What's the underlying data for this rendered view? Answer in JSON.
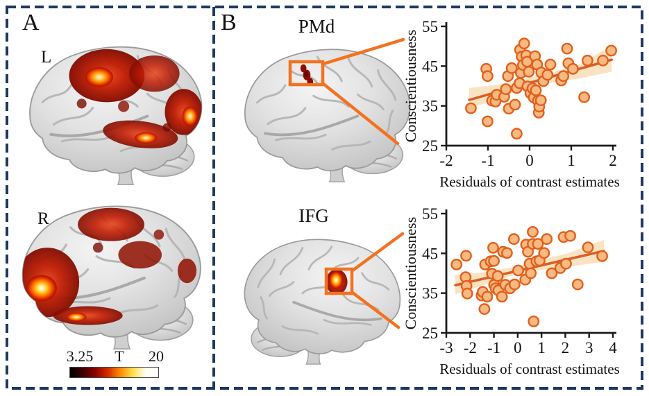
{
  "colors": {
    "border_navy": "#1e3864",
    "callout_orange": "#f4711f",
    "point_fill": "#f8ba83",
    "point_stroke": "#e2601c",
    "trend_line": "#d95f26",
    "band_fill": "#fae3c2",
    "axis": "#1a1a1a",
    "activation_red": "#c41e04",
    "activation_dark_red": "#7c0b00",
    "activation_hot_core": "#ffee55",
    "brain_gray": "#d9d9d9"
  },
  "panel_a": {
    "label": "A",
    "top_brain": {
      "hemisphere_label": "L"
    },
    "bottom_brain": {
      "hemisphere_label": "R"
    },
    "colorbar": {
      "min_label": "3.25",
      "stat_label": "T",
      "max_label": "20",
      "gradient": [
        "#000000",
        "#3f0000",
        "#8e0000",
        "#d52b00",
        "#ff8c00",
        "#ffe14d",
        "#fffdf0",
        "#ffffff"
      ]
    }
  },
  "panel_b": {
    "label": "B",
    "top_region_label": "PMd",
    "bottom_region_label": "IFG"
  },
  "chart_data": [
    {
      "type": "scatter",
      "region": "PMd",
      "xlabel": "Residuals of contrast estimates",
      "ylabel": "Conscientiousness",
      "xlim": [
        -2,
        2
      ],
      "ylim": [
        25,
        55
      ],
      "xticks": [
        -2,
        -1,
        0,
        1,
        2
      ],
      "yticks": [
        25,
        35,
        45,
        55
      ],
      "grid": false,
      "points": [
        [
          -1.41,
          34.4
        ],
        [
          -1.04,
          44.3
        ],
        [
          -1.01,
          42.5
        ],
        [
          -1.01,
          31.1
        ],
        [
          -0.9,
          36.3
        ],
        [
          -0.82,
          36.1
        ],
        [
          -0.79,
          37.8
        ],
        [
          -0.61,
          37.3
        ],
        [
          -0.57,
          39.2
        ],
        [
          -0.52,
          42.5
        ],
        [
          -0.5,
          34.3
        ],
        [
          -0.43,
          44.5
        ],
        [
          -0.35,
          35.3
        ],
        [
          -0.31,
          39.5
        ],
        [
          -0.31,
          28.0
        ],
        [
          -0.24,
          40.7
        ],
        [
          -0.23,
          49.1
        ],
        [
          -0.21,
          43.3
        ],
        [
          -0.19,
          47.4
        ],
        [
          -0.16,
          45.3
        ],
        [
          -0.13,
          50.7
        ],
        [
          -0.08,
          47.7
        ],
        [
          -0.06,
          46.1
        ],
        [
          -0.05,
          39.9
        ],
        [
          -0.02,
          43.6
        ],
        [
          0.02,
          38.2
        ],
        [
          0.07,
          39.4
        ],
        [
          0.1,
          37.1
        ],
        [
          0.13,
          47.5
        ],
        [
          0.15,
          38.9
        ],
        [
          0.18,
          45.4
        ],
        [
          0.2,
          36.3
        ],
        [
          0.22,
          33.3
        ],
        [
          0.23,
          34.8
        ],
        [
          0.27,
          36.4
        ],
        [
          0.28,
          43.4
        ],
        [
          0.33,
          41.2
        ],
        [
          0.43,
          42.8
        ],
        [
          0.5,
          45.4
        ],
        [
          0.76,
          41.4
        ],
        [
          0.81,
          42.5
        ],
        [
          0.9,
          49.4
        ],
        [
          0.93,
          45.7
        ],
        [
          1.04,
          44.3
        ],
        [
          1.31,
          37.2
        ],
        [
          1.39,
          46.4
        ],
        [
          1.76,
          46.4
        ],
        [
          1.96,
          48.9
        ]
      ],
      "trend": {
        "x": [
          -1.45,
          1.97
        ],
        "y": [
          36.5,
          46.6
        ]
      },
      "band": {
        "x": [
          -1.45,
          -0.8,
          -0.2,
          0.4,
          1.2,
          1.97
        ],
        "upper": [
          39.5,
          40.3,
          41.6,
          43.0,
          45.4,
          50.2
        ],
        "lower": [
          34.3,
          36.7,
          39.2,
          40.6,
          41.9,
          43.6
        ]
      }
    },
    {
      "type": "scatter",
      "region": "IFG",
      "xlabel": "Residuals of contrast estimates",
      "ylabel": "Conscientiousness",
      "xlim": [
        -3,
        4
      ],
      "ylim": [
        25,
        55
      ],
      "xticks": [
        -3,
        -2,
        -1,
        0,
        1,
        2,
        3,
        4
      ],
      "yticks": [
        25,
        35,
        45,
        55
      ],
      "grid": false,
      "points": [
        [
          -2.57,
          42.2
        ],
        [
          -2.19,
          39.0
        ],
        [
          -2.17,
          44.4
        ],
        [
          -2.15,
          36.8
        ],
        [
          -2.12,
          34.9
        ],
        [
          -1.52,
          34.4
        ],
        [
          -1.47,
          35.3
        ],
        [
          -1.4,
          31.0
        ],
        [
          -1.37,
          42.2
        ],
        [
          -1.28,
          34.1
        ],
        [
          -1.14,
          43.0
        ],
        [
          -1.08,
          39.9
        ],
        [
          -1.03,
          46.4
        ],
        [
          -1.0,
          43.1
        ],
        [
          -0.99,
          37.1
        ],
        [
          -0.93,
          36.2
        ],
        [
          -0.84,
          39.3
        ],
        [
          -0.81,
          35.7
        ],
        [
          -0.66,
          34.1
        ],
        [
          -0.61,
          45.4
        ],
        [
          -0.52,
          37.1
        ],
        [
          -0.45,
          45.1
        ],
        [
          -0.32,
          36.2
        ],
        [
          -0.16,
          48.6
        ],
        [
          -0.13,
          37.2
        ],
        [
          0.02,
          40.7
        ],
        [
          0.32,
          38.4
        ],
        [
          0.35,
          47.2
        ],
        [
          0.43,
          45.4
        ],
        [
          0.5,
          42.4
        ],
        [
          0.55,
          40.0
        ],
        [
          0.63,
          50.4
        ],
        [
          0.63,
          47.4
        ],
        [
          0.67,
          27.9
        ],
        [
          0.79,
          43.0
        ],
        [
          0.85,
          47.4
        ],
        [
          0.92,
          43.2
        ],
        [
          1.11,
          45.1
        ],
        [
          1.22,
          48.6
        ],
        [
          1.43,
          40.0
        ],
        [
          1.79,
          41.3
        ],
        [
          1.93,
          49.1
        ],
        [
          2.03,
          42.4
        ],
        [
          2.21,
          49.4
        ],
        [
          2.52,
          37.2
        ],
        [
          2.95,
          46.5
        ],
        [
          3.55,
          44.3
        ]
      ],
      "trend": {
        "x": [
          -2.62,
          3.62
        ],
        "y": [
          37.0,
          45.6
        ]
      },
      "band": {
        "x": [
          -2.62,
          -1.5,
          -0.3,
          0.8,
          2.2,
          3.62
        ],
        "upper": [
          39.6,
          40.2,
          41.4,
          43.0,
          45.2,
          48.4
        ],
        "lower": [
          34.7,
          36.9,
          39.3,
          40.7,
          41.7,
          42.9
        ]
      }
    }
  ]
}
